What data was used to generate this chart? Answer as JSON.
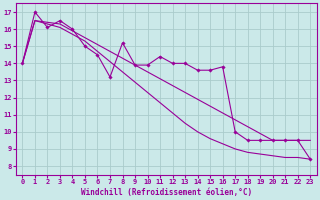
{
  "xlabel": "Windchill (Refroidissement éolien,°C)",
  "background_color": "#cbe9e9",
  "grid_color": "#aacccc",
  "line_color": "#990099",
  "xlim": [
    -0.5,
    23.5
  ],
  "ylim": [
    7.5,
    17.5
  ],
  "yticks": [
    8,
    9,
    10,
    11,
    12,
    13,
    14,
    15,
    16,
    17
  ],
  "xticks": [
    0,
    1,
    2,
    3,
    4,
    5,
    6,
    7,
    8,
    9,
    10,
    11,
    12,
    13,
    14,
    15,
    16,
    17,
    18,
    19,
    20,
    21,
    22,
    23
  ],
  "s1_x": [
    0,
    1,
    2,
    3,
    4,
    5,
    6,
    7,
    8,
    9,
    10,
    11,
    12,
    13,
    14,
    15,
    16,
    17,
    18,
    19,
    20,
    21,
    22,
    23
  ],
  "s1_y": [
    14.0,
    17.0,
    16.1,
    16.5,
    16.0,
    15.0,
    14.5,
    13.2,
    15.2,
    13.9,
    13.9,
    14.4,
    14.0,
    14.0,
    13.6,
    13.6,
    13.8,
    10.0,
    9.5,
    9.5,
    9.5,
    9.5,
    9.5,
    8.4
  ],
  "s2_x": [
    0,
    1,
    2,
    3,
    4,
    5,
    6,
    7,
    8,
    9,
    10,
    11,
    12,
    13,
    14,
    15,
    16,
    17,
    18,
    19,
    20,
    21,
    22,
    23
  ],
  "s2_y": [
    14.0,
    16.5,
    16.4,
    16.3,
    15.9,
    15.5,
    15.1,
    14.7,
    14.3,
    13.9,
    13.5,
    13.1,
    12.7,
    12.3,
    11.9,
    11.5,
    11.1,
    10.7,
    10.3,
    9.9,
    9.5,
    9.5,
    9.5,
    9.5
  ],
  "s3_x": [
    0,
    1,
    2,
    3,
    4,
    5,
    6,
    7,
    8,
    9,
    10,
    11,
    12,
    13,
    14,
    15,
    16,
    17,
    18,
    19,
    20,
    21,
    22,
    23
  ],
  "s3_y": [
    14.0,
    16.5,
    16.3,
    16.1,
    15.7,
    15.3,
    14.7,
    14.1,
    13.5,
    12.9,
    12.3,
    11.7,
    11.1,
    10.5,
    10.0,
    9.6,
    9.3,
    9.0,
    8.8,
    8.7,
    8.6,
    8.5,
    8.5,
    8.4
  ],
  "xlabel_fontsize": 5.5,
  "tick_fontsize": 5.0
}
